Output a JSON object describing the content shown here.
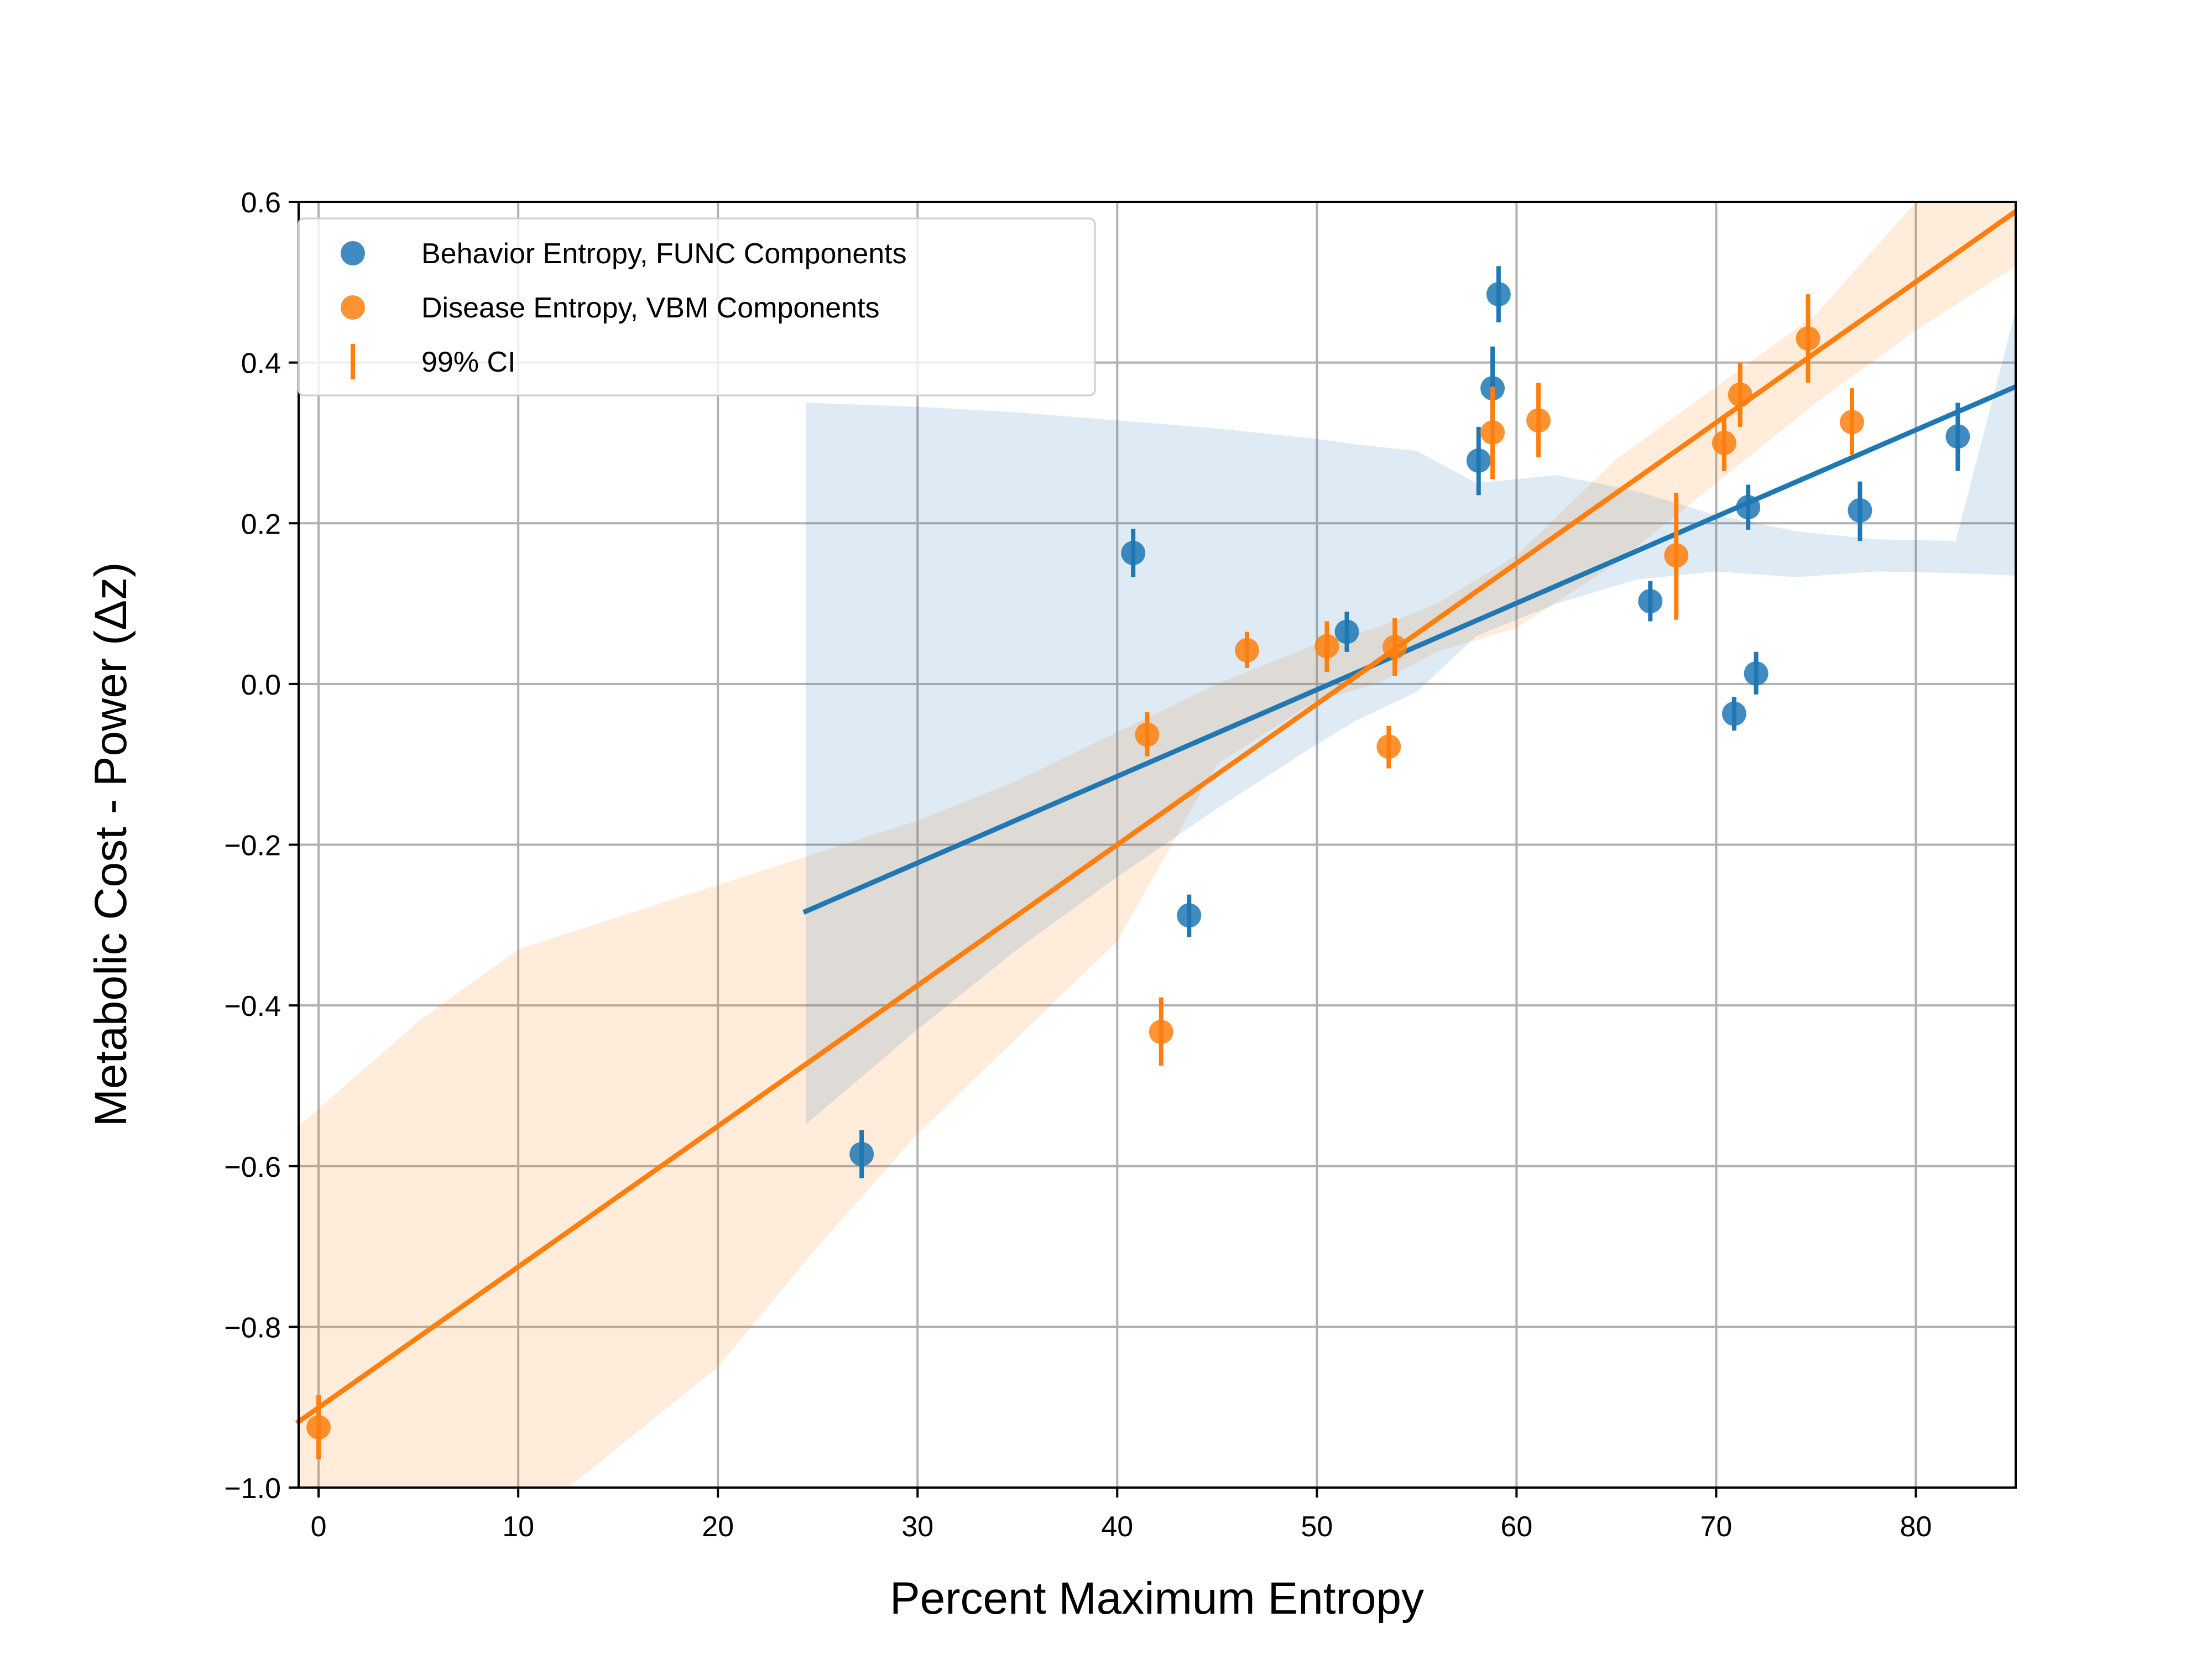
{
  "chart_data": {
    "type": "scatter",
    "xlabel": "Percent Maximum Entropy",
    "ylabel": "Metabolic Cost - Power (Δz)",
    "xlim": [
      -1,
      85
    ],
    "ylim": [
      -1.0,
      0.6
    ],
    "xticks": [
      0,
      10,
      20,
      30,
      40,
      50,
      60,
      70,
      80
    ],
    "xtick_labels": [
      "0",
      "10",
      "20",
      "30",
      "40",
      "50",
      "60",
      "70",
      "80"
    ],
    "yticks": [
      0.6,
      0.4,
      0.2,
      0.0,
      -0.2,
      -0.4,
      -0.6,
      -0.8,
      -1.0
    ],
    "ytick_labels": [
      "0.6",
      "0.4",
      "0.2",
      "0.0",
      "−0.2",
      "−0.4",
      "−0.6",
      "−0.8",
      "−1.0"
    ],
    "grid": true,
    "legend_position": "top-left",
    "legend": {
      "series1": "Behavior Entropy, FUNC Components",
      "series2": "Disease Entropy, VBM Components",
      "ci": "99% CI"
    },
    "series": [
      {
        "name": "Behavior Entropy, FUNC Components",
        "color": "#1f77b4",
        "points": [
          {
            "x": 27.2,
            "y": -0.585,
            "lo": -0.615,
            "hi": -0.555
          },
          {
            "x": 40.8,
            "y": 0.163,
            "lo": 0.133,
            "hi": 0.193
          },
          {
            "x": 43.6,
            "y": -0.288,
            "lo": -0.315,
            "hi": -0.262
          },
          {
            "x": 51.5,
            "y": 0.065,
            "lo": 0.04,
            "hi": 0.09
          },
          {
            "x": 58.1,
            "y": 0.278,
            "lo": 0.235,
            "hi": 0.32
          },
          {
            "x": 58.8,
            "y": 0.368,
            "lo": 0.315,
            "hi": 0.42
          },
          {
            "x": 59.1,
            "y": 0.485,
            "lo": 0.45,
            "hi": 0.52
          },
          {
            "x": 66.7,
            "y": 0.103,
            "lo": 0.078,
            "hi": 0.128
          },
          {
            "x": 70.9,
            "y": -0.037,
            "lo": -0.058,
            "hi": -0.016
          },
          {
            "x": 71.6,
            "y": 0.22,
            "lo": 0.192,
            "hi": 0.248
          },
          {
            "x": 72.0,
            "y": 0.013,
            "lo": -0.013,
            "hi": 0.04
          },
          {
            "x": 77.2,
            "y": 0.216,
            "lo": 0.178,
            "hi": 0.252
          },
          {
            "x": 82.1,
            "y": 0.308,
            "lo": 0.265,
            "hi": 0.35
          }
        ],
        "fit": {
          "x": [
            24.4,
            85
          ],
          "y": [
            -0.283,
            0.37
          ]
        },
        "band": {
          "x": [
            24.4,
            30,
            35,
            40,
            45,
            50,
            52,
            55,
            58,
            62,
            66,
            70,
            74,
            78,
            82,
            85
          ],
          "upper": [
            0.35,
            0.345,
            0.338,
            0.328,
            0.318,
            0.305,
            0.298,
            0.29,
            0.25,
            0.26,
            0.24,
            0.21,
            0.19,
            0.18,
            0.178,
            0.465
          ],
          "lower": [
            -0.548,
            -0.43,
            -0.33,
            -0.24,
            -0.155,
            -0.075,
            -0.045,
            -0.01,
            0.06,
            0.1,
            0.13,
            0.14,
            0.133,
            0.14,
            0.138,
            0.135
          ]
        }
      },
      {
        "name": "Disease Entropy, VBM Components",
        "color": "#ff7f0e",
        "points": [
          {
            "x": 0.0,
            "y": -0.925,
            "lo": -0.965,
            "hi": -0.885
          },
          {
            "x": 41.5,
            "y": -0.063,
            "lo": -0.09,
            "hi": -0.035
          },
          {
            "x": 42.2,
            "y": -0.433,
            "lo": -0.475,
            "hi": -0.39
          },
          {
            "x": 46.5,
            "y": 0.042,
            "lo": 0.02,
            "hi": 0.065
          },
          {
            "x": 50.5,
            "y": 0.047,
            "lo": 0.015,
            "hi": 0.078
          },
          {
            "x": 53.6,
            "y": -0.078,
            "lo": -0.105,
            "hi": -0.052
          },
          {
            "x": 53.9,
            "y": 0.046,
            "lo": 0.01,
            "hi": 0.082
          },
          {
            "x": 58.8,
            "y": 0.313,
            "lo": 0.255,
            "hi": 0.37
          },
          {
            "x": 61.1,
            "y": 0.328,
            "lo": 0.282,
            "hi": 0.375
          },
          {
            "x": 68.0,
            "y": 0.16,
            "lo": 0.08,
            "hi": 0.238
          },
          {
            "x": 70.4,
            "y": 0.3,
            "lo": 0.265,
            "hi": 0.335
          },
          {
            "x": 71.2,
            "y": 0.36,
            "lo": 0.32,
            "hi": 0.4
          },
          {
            "x": 74.6,
            "y": 0.43,
            "lo": 0.375,
            "hi": 0.485
          },
          {
            "x": 76.8,
            "y": 0.326,
            "lo": 0.285,
            "hi": 0.368
          }
        ],
        "fit": {
          "x": [
            -1,
            85
          ],
          "y": [
            -0.918,
            0.588
          ]
        },
        "band": {
          "x": [
            -1,
            5,
            10,
            15,
            20,
            25,
            30,
            35,
            40,
            45,
            50,
            53,
            56,
            60,
            65,
            70,
            75,
            80,
            85
          ],
          "upper": [
            -0.55,
            -0.42,
            -0.33,
            -0.29,
            -0.25,
            -0.21,
            -0.17,
            -0.12,
            -0.06,
            -0.0,
            0.05,
            0.07,
            0.1,
            0.16,
            0.28,
            0.37,
            0.46,
            0.6,
            0.63
          ],
          "lower": [
            -1.05,
            -1.05,
            -1.05,
            -0.95,
            -0.85,
            -0.7,
            -0.56,
            -0.44,
            -0.32,
            -0.1,
            -0.02,
            0.0,
            0.04,
            0.07,
            0.15,
            0.25,
            0.35,
            0.44,
            0.52
          ]
        }
      }
    ]
  }
}
